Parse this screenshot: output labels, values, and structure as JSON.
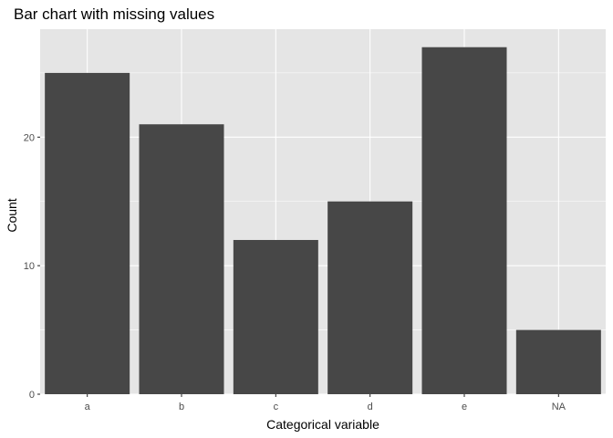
{
  "chart_data": {
    "type": "bar",
    "title": "Bar chart with missing values",
    "xlabel": "Categorical variable",
    "ylabel": "Count",
    "categories": [
      "a",
      "b",
      "c",
      "d",
      "e",
      "NA"
    ],
    "values": [
      25,
      21,
      12,
      15,
      27,
      5
    ],
    "ylim": [
      0,
      28.4
    ],
    "yticks": [
      0,
      10,
      20
    ],
    "grid": true,
    "bar_color": "#474747",
    "panel_background": "#e5e5e5",
    "grid_color": "#ffffff"
  }
}
